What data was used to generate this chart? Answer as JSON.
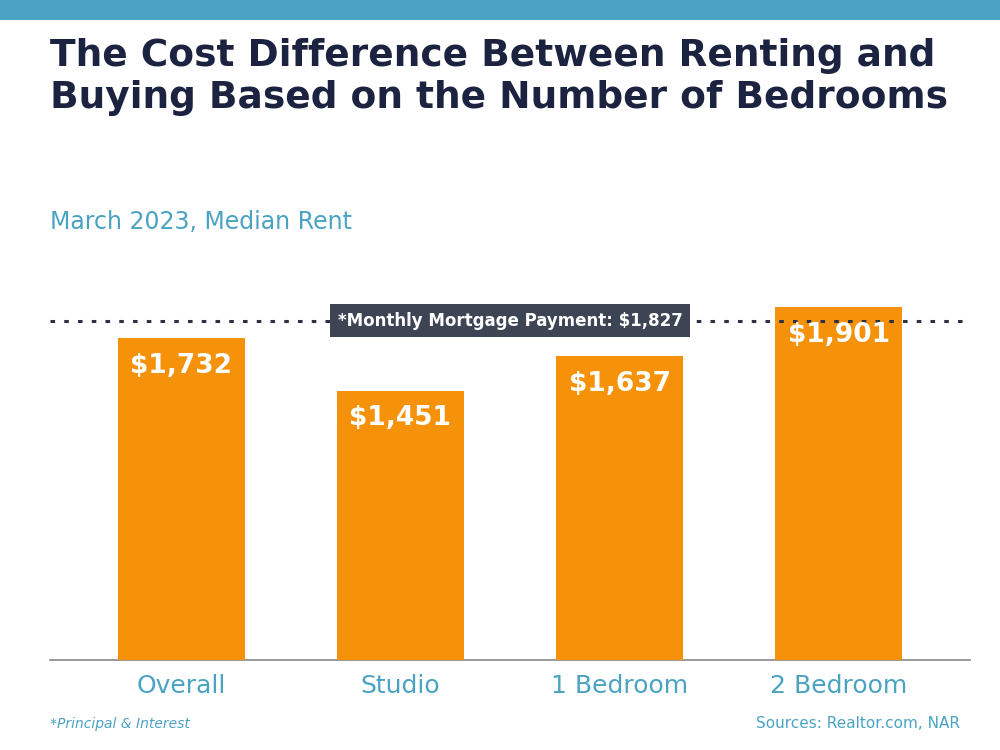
{
  "title_line1": "The Cost Difference Between Renting and",
  "title_line2": "Buying Based on the Number of Bedrooms",
  "subtitle": "March 2023, Median Rent",
  "categories": [
    "Overall",
    "Studio",
    "1 Bedroom",
    "2 Bedroom"
  ],
  "values": [
    1732,
    1451,
    1637,
    1901
  ],
  "bar_color": "#F5920A",
  "mortgage_line": 1827,
  "mortgage_label": "*Monthly Mortgage Payment: $1,827",
  "bar_labels": [
    "$1,732",
    "$1,451",
    "$1,637",
    "$1,901"
  ],
  "title_color": "#1c2340",
  "subtitle_color": "#4ba3c3",
  "category_color": "#4ba3c3",
  "footnote": "*Principal & Interest",
  "source": "Sources: Realtor.com, NAR",
  "background_color": "#ffffff",
  "top_bar_color": "#4ba3c3",
  "ylim": [
    0,
    2100
  ]
}
